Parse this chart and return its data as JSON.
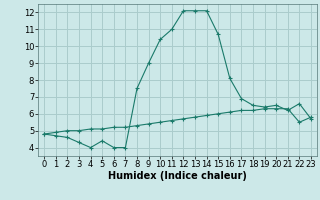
{
  "title": "",
  "xlabel": "Humidex (Indice chaleur)",
  "background_color": "#cce8e8",
  "grid_color": "#aacccc",
  "line_color": "#1a7a6a",
  "xlim": [
    -0.5,
    23.5
  ],
  "ylim": [
    3.5,
    12.5
  ],
  "yticks": [
    4,
    5,
    6,
    7,
    8,
    9,
    10,
    11,
    12
  ],
  "xticks": [
    0,
    1,
    2,
    3,
    4,
    5,
    6,
    7,
    8,
    9,
    10,
    11,
    12,
    13,
    14,
    15,
    16,
    17,
    18,
    19,
    20,
    21,
    22,
    23
  ],
  "series1_x": [
    0,
    1,
    2,
    3,
    4,
    5,
    6,
    7,
    8,
    9,
    10,
    11,
    12,
    13,
    14,
    15,
    16,
    17,
    18,
    19,
    20,
    21,
    22,
    23
  ],
  "series1_y": [
    4.8,
    4.7,
    4.6,
    4.3,
    4.0,
    4.4,
    4.0,
    4.0,
    7.5,
    9.0,
    10.4,
    11.0,
    12.1,
    12.1,
    12.1,
    10.7,
    8.1,
    6.9,
    6.5,
    6.4,
    6.5,
    6.2,
    6.6,
    5.7
  ],
  "series2_x": [
    0,
    1,
    2,
    3,
    4,
    5,
    6,
    7,
    8,
    9,
    10,
    11,
    12,
    13,
    14,
    15,
    16,
    17,
    18,
    19,
    20,
    21,
    22,
    23
  ],
  "series2_y": [
    4.8,
    4.9,
    5.0,
    5.0,
    5.1,
    5.1,
    5.2,
    5.2,
    5.3,
    5.4,
    5.5,
    5.6,
    5.7,
    5.8,
    5.9,
    6.0,
    6.1,
    6.2,
    6.2,
    6.3,
    6.3,
    6.3,
    5.5,
    5.8
  ],
  "tick_fontsize": 6,
  "xlabel_fontsize": 7
}
